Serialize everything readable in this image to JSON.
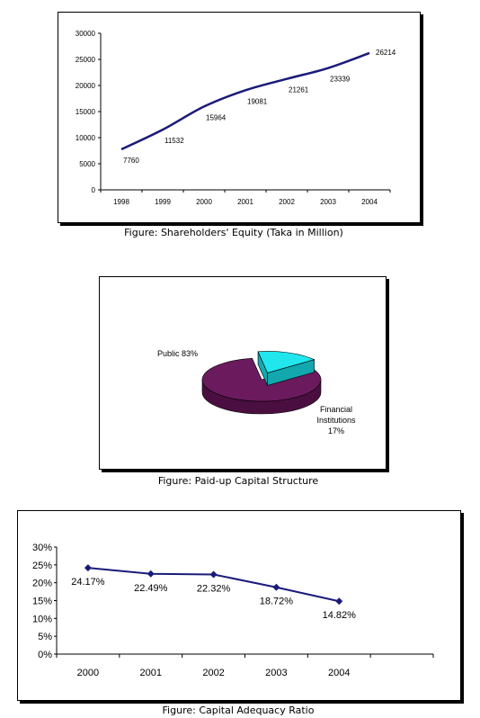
{
  "captions": {
    "equity": "Figure: Shareholders' Equity (Taka in Million)",
    "capital": "Figure: Paid-up Capital Structure",
    "adequacy": "Figure: Capital Adequacy Ratio"
  },
  "chart_data": [
    {
      "type": "line",
      "categories": [
        "1998",
        "1999",
        "2000",
        "2001",
        "2002",
        "2003",
        "2004"
      ],
      "values": [
        7760,
        11532,
        15964,
        19081,
        21261,
        23339,
        26214
      ],
      "labels": [
        "7760",
        "11532",
        "15964",
        "19081",
        "21261",
        "23339",
        "26214"
      ],
      "yticks": [
        "0",
        "5000",
        "10000",
        "15000",
        "20000",
        "25000",
        "30000"
      ],
      "ylim": [
        0,
        30000
      ],
      "color": "#1a1a7a",
      "grid": false,
      "legend": false
    },
    {
      "type": "pie",
      "slices": [
        {
          "name": "Public",
          "value": 83,
          "label": "Public 83%",
          "color": "#6b1a5e"
        },
        {
          "name": "Financial Institutions",
          "value": 17,
          "label_lines": [
            "Financial",
            "Institutions",
            "17%"
          ],
          "color": "#22e6ee"
        }
      ],
      "three_d": true,
      "exploded_slice": "Financial Institutions"
    },
    {
      "type": "line",
      "categories": [
        "2000",
        "2001",
        "2002",
        "2003",
        "2004"
      ],
      "values": [
        24.17,
        22.49,
        22.32,
        18.72,
        14.82
      ],
      "labels": [
        "24.17%",
        "22.49%",
        "22.32%",
        "18.72%",
        "14.82%"
      ],
      "yticks": [
        "0%",
        "5%",
        "10%",
        "15%",
        "20%",
        "25%",
        "30%"
      ],
      "ylim": [
        0,
        30
      ],
      "color": "#1a1a7a",
      "markers": "diamond",
      "grid": false,
      "legend": false
    }
  ]
}
